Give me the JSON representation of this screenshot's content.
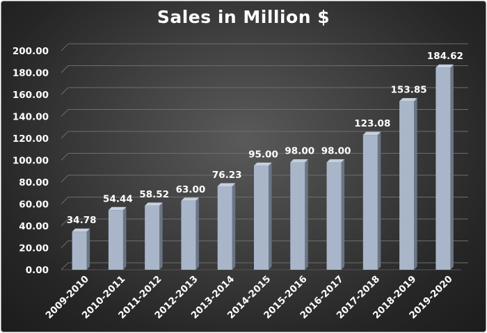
{
  "chart_data": {
    "type": "bar",
    "title": "Sales in Million $",
    "xlabel": "",
    "ylabel": "",
    "categories": [
      "2009-2010",
      "2010-2011",
      "2011-2012",
      "2012-2013",
      "2013-2014",
      "2014-2015",
      "2015-2016",
      "2016-2017",
      "2017-2018",
      "2018-2019",
      "2019-2020"
    ],
    "values": [
      34.78,
      54.44,
      58.52,
      63.0,
      76.23,
      95.0,
      98.0,
      98.0,
      123.08,
      153.85,
      184.62
    ],
    "data_labels": [
      "34.78",
      "54.44",
      "58.52",
      "63.00",
      "76.23",
      "95.00",
      "98.00",
      "98.00",
      "123.08",
      "153.85",
      "184.62"
    ],
    "ylim": [
      0,
      200
    ],
    "yticks": [
      "0.00",
      "20.00",
      "40.00",
      "60.00",
      "80.00",
      "100.00",
      "120.00",
      "140.00",
      "160.00",
      "180.00",
      "200.00"
    ],
    "grid": true,
    "legend": "none",
    "style": "3d-columns",
    "colors": {
      "bar_front": "#a9b6c9",
      "bar_side": "#6a7585",
      "bar_top": "#c6d0de",
      "background": "#3a3a3a",
      "text": "#ffffff",
      "grid": "#6e6e6e"
    }
  }
}
